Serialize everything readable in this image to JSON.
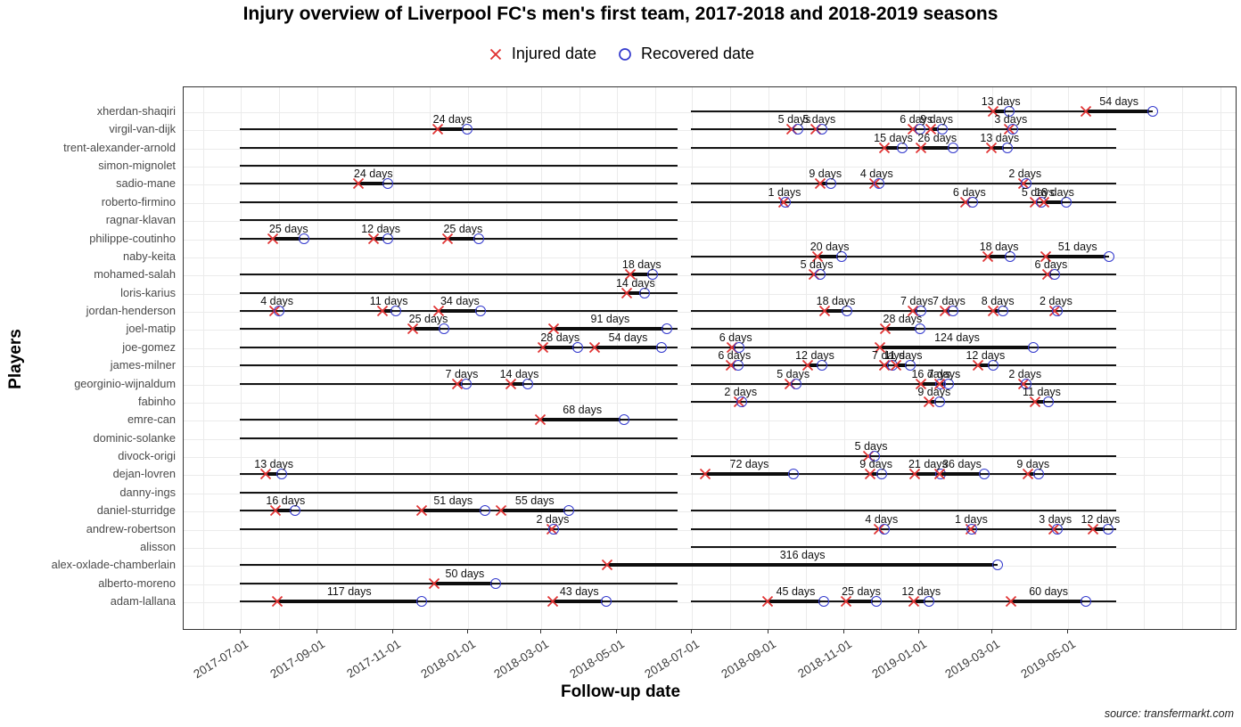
{
  "title": "Injury overview of Liverpool FC's men's first team, 2017-2018 and 2018-2019 seasons",
  "legend": {
    "injured_label": "Injured date",
    "recovered_label": "Recovered date"
  },
  "x_axis": {
    "title": "Follow-up date",
    "ticks": [
      "2017-07-01",
      "2017-09-01",
      "2017-11-01",
      "2018-01-01",
      "2018-03-01",
      "2018-05-01",
      "2018-07-01",
      "2018-09-01",
      "2018-11-01",
      "2019-01-01",
      "2019-03-01",
      "2019-05-01"
    ]
  },
  "y_axis": {
    "title": "Players"
  },
  "caption": "source: transfermarkt.com",
  "colors": {
    "injured": "#e03131",
    "recovered": "#3238cd",
    "line": "#141414",
    "grid": "#ebebeb",
    "axis_text": "#3d3d3d",
    "label_text": "#4a4a4a"
  },
  "chart_data": {
    "type": "timeline",
    "unit": "days",
    "x_range": [
      "2017-05-16",
      "2019-09-13"
    ],
    "grid": "monthly",
    "legend_position": "top-center",
    "players": [
      {
        "name": "xherdan-shaqiri",
        "lines": [
          [
            "2018-07-01",
            "2019-07-09"
          ]
        ],
        "injuries": [
          {
            "start": "2019-03-02",
            "end": "2019-03-15",
            "days": 13
          },
          {
            "start": "2019-05-16",
            "end": "2019-07-09",
            "days": 54
          }
        ]
      },
      {
        "name": "virgil-van-dijk",
        "lines": [
          [
            "2017-07-01",
            "2018-06-20"
          ],
          [
            "2018-07-01",
            "2019-06-10"
          ]
        ],
        "injuries": [
          {
            "start": "2017-12-08",
            "end": "2018-01-01",
            "days": 24
          },
          {
            "start": "2018-09-20",
            "end": "2018-09-25",
            "days": 5
          },
          {
            "start": "2018-10-10",
            "end": "2018-10-15",
            "days": 5
          },
          {
            "start": "2018-12-27",
            "end": "2019-01-02",
            "days": 6
          },
          {
            "start": "2019-01-11",
            "end": "2019-01-20",
            "days": 9
          },
          {
            "start": "2019-03-15",
            "end": "2019-03-18",
            "days": 3
          }
        ]
      },
      {
        "name": "trent-alexander-arnold",
        "lines": [
          [
            "2017-07-01",
            "2018-06-20"
          ],
          [
            "2018-07-01",
            "2019-06-10"
          ]
        ],
        "injuries": [
          {
            "start": "2018-12-04",
            "end": "2018-12-19",
            "days": 15
          },
          {
            "start": "2019-01-03",
            "end": "2019-01-29",
            "days": 26
          },
          {
            "start": "2019-03-01",
            "end": "2019-03-14",
            "days": 13
          }
        ]
      },
      {
        "name": "simon-mignolet",
        "lines": [
          [
            "2017-07-01",
            "2018-06-20"
          ]
        ],
        "injuries": []
      },
      {
        "name": "sadio-mane",
        "lines": [
          [
            "2017-07-01",
            "2018-06-20"
          ],
          [
            "2018-07-01",
            "2019-06-10"
          ]
        ],
        "injuries": [
          {
            "start": "2017-10-05",
            "end": "2017-10-29",
            "days": 24
          },
          {
            "start": "2018-10-13",
            "end": "2018-10-22",
            "days": 9
          },
          {
            "start": "2018-11-26",
            "end": "2018-11-30",
            "days": 4
          },
          {
            "start": "2019-03-27",
            "end": "2019-03-29",
            "days": 2
          }
        ]
      },
      {
        "name": "roberto-firmino",
        "lines": [
          [
            "2017-07-01",
            "2018-06-20"
          ],
          [
            "2018-07-01",
            "2019-06-10"
          ]
        ],
        "injuries": [
          {
            "start": "2018-09-14",
            "end": "2018-09-15",
            "days": 1
          },
          {
            "start": "2019-02-08",
            "end": "2019-02-14",
            "days": 6
          },
          {
            "start": "2019-04-05",
            "end": "2019-04-10",
            "days": 5
          },
          {
            "start": "2019-04-12",
            "end": "2019-04-30",
            "days": 18
          }
        ]
      },
      {
        "name": "ragnar-klavan",
        "lines": [
          [
            "2017-07-01",
            "2018-06-20"
          ]
        ],
        "injuries": []
      },
      {
        "name": "philippe-coutinho",
        "lines": [
          [
            "2017-07-01",
            "2018-06-20"
          ]
        ],
        "injuries": [
          {
            "start": "2017-07-28",
            "end": "2017-08-22",
            "days": 25
          },
          {
            "start": "2017-10-17",
            "end": "2017-10-29",
            "days": 12
          },
          {
            "start": "2017-12-16",
            "end": "2018-01-10",
            "days": 25
          }
        ]
      },
      {
        "name": "naby-keita",
        "lines": [
          [
            "2018-07-01",
            "2019-06-04"
          ]
        ],
        "injuries": [
          {
            "start": "2018-10-11",
            "end": "2018-10-31",
            "days": 20
          },
          {
            "start": "2019-02-26",
            "end": "2019-03-16",
            "days": 18
          },
          {
            "start": "2019-04-14",
            "end": "2019-06-04",
            "days": 51
          }
        ]
      },
      {
        "name": "mohamed-salah",
        "lines": [
          [
            "2017-07-01",
            "2018-06-20"
          ],
          [
            "2018-07-01",
            "2019-06-10"
          ]
        ],
        "injuries": [
          {
            "start": "2018-05-13",
            "end": "2018-05-31",
            "days": 18
          },
          {
            "start": "2018-10-08",
            "end": "2018-10-13",
            "days": 5
          },
          {
            "start": "2019-04-15",
            "end": "2019-04-21",
            "days": 6
          }
        ]
      },
      {
        "name": "loris-karius",
        "lines": [
          [
            "2017-07-01",
            "2018-06-20"
          ]
        ],
        "injuries": [
          {
            "start": "2018-05-10",
            "end": "2018-05-24",
            "days": 14
          }
        ]
      },
      {
        "name": "jordan-henderson",
        "lines": [
          [
            "2017-07-01",
            "2018-06-20"
          ],
          [
            "2018-07-01",
            "2019-06-10"
          ]
        ],
        "injuries": [
          {
            "start": "2017-07-29",
            "end": "2017-08-02",
            "days": 4
          },
          {
            "start": "2017-10-24",
            "end": "2017-11-04",
            "days": 11
          },
          {
            "start": "2017-12-09",
            "end": "2018-01-12",
            "days": 34
          },
          {
            "start": "2018-10-17",
            "end": "2018-11-04",
            "days": 18
          },
          {
            "start": "2018-12-27",
            "end": "2019-01-03",
            "days": 7
          },
          {
            "start": "2019-01-22",
            "end": "2019-01-29",
            "days": 7
          },
          {
            "start": "2019-03-02",
            "end": "2019-03-10",
            "days": 8
          },
          {
            "start": "2019-04-21",
            "end": "2019-04-23",
            "days": 2
          }
        ]
      },
      {
        "name": "joel-matip",
        "lines": [
          [
            "2017-07-01",
            "2018-06-20"
          ],
          [
            "2018-07-01",
            "2019-06-10"
          ]
        ],
        "injuries": [
          {
            "start": "2017-11-18",
            "end": "2017-12-13",
            "days": 25
          },
          {
            "start": "2018-03-12",
            "end": "2018-06-11",
            "days": 91
          },
          {
            "start": "2018-12-05",
            "end": "2019-01-02",
            "days": 28
          }
        ]
      },
      {
        "name": "joe-gomez",
        "lines": [
          [
            "2017-07-01",
            "2018-06-20"
          ],
          [
            "2018-07-01",
            "2019-06-10"
          ]
        ],
        "injuries": [
          {
            "start": "2018-03-03",
            "end": "2018-03-31",
            "days": 28
          },
          {
            "start": "2018-04-14",
            "end": "2018-06-07",
            "days": 54
          },
          {
            "start": "2018-08-03",
            "end": "2018-08-09",
            "days": 6
          },
          {
            "start": "2018-12-01",
            "end": "2019-04-04",
            "days": 124
          }
        ]
      },
      {
        "name": "james-milner",
        "lines": [
          [
            "2017-07-01",
            "2018-06-20"
          ],
          [
            "2018-07-01",
            "2019-06-10"
          ]
        ],
        "injuries": [
          {
            "start": "2018-08-02",
            "end": "2018-08-08",
            "days": 6
          },
          {
            "start": "2018-10-03",
            "end": "2018-10-15",
            "days": 12
          },
          {
            "start": "2018-12-04",
            "end": "2018-12-11",
            "days": 7
          },
          {
            "start": "2018-12-14",
            "end": "2018-12-25",
            "days": 11
          },
          {
            "start": "2019-02-18",
            "end": "2019-03-02",
            "days": 12
          }
        ]
      },
      {
        "name": "georginio-wijnaldum",
        "lines": [
          [
            "2017-07-01",
            "2018-06-20"
          ],
          [
            "2018-07-01",
            "2019-06-10"
          ]
        ],
        "injuries": [
          {
            "start": "2017-12-24",
            "end": "2017-12-31",
            "days": 7
          },
          {
            "start": "2018-02-05",
            "end": "2018-02-19",
            "days": 14
          },
          {
            "start": "2018-09-19",
            "end": "2018-09-24",
            "days": 5
          },
          {
            "start": "2019-01-03",
            "end": "2019-01-19",
            "days": 16
          },
          {
            "start": "2019-01-18",
            "end": "2019-01-25",
            "days": 7
          },
          {
            "start": "2019-03-27",
            "end": "2019-03-29",
            "days": 2
          }
        ]
      },
      {
        "name": "fabinho",
        "lines": [
          [
            "2018-07-01",
            "2019-06-10"
          ]
        ],
        "injuries": [
          {
            "start": "2018-08-09",
            "end": "2018-08-11",
            "days": 2
          },
          {
            "start": "2019-01-09",
            "end": "2019-01-18",
            "days": 9
          },
          {
            "start": "2019-04-05",
            "end": "2019-04-16",
            "days": 11
          }
        ]
      },
      {
        "name": "emre-can",
        "lines": [
          [
            "2017-07-01",
            "2018-06-20"
          ]
        ],
        "injuries": [
          {
            "start": "2018-03-01",
            "end": "2018-05-08",
            "days": 68
          }
        ]
      },
      {
        "name": "dominic-solanke",
        "lines": [
          [
            "2017-07-01",
            "2018-06-20"
          ]
        ],
        "injuries": []
      },
      {
        "name": "divock-origi",
        "lines": [
          [
            "2018-07-01",
            "2019-06-10"
          ]
        ],
        "injuries": [
          {
            "start": "2018-11-21",
            "end": "2018-11-26",
            "days": 5
          }
        ]
      },
      {
        "name": "dejan-lovren",
        "lines": [
          [
            "2017-07-01",
            "2018-06-20"
          ],
          [
            "2018-07-01",
            "2019-06-10"
          ]
        ],
        "injuries": [
          {
            "start": "2017-07-22",
            "end": "2017-08-04",
            "days": 13
          },
          {
            "start": "2018-07-12",
            "end": "2018-09-22",
            "days": 72
          },
          {
            "start": "2018-11-23",
            "end": "2018-12-02",
            "days": 9
          },
          {
            "start": "2018-12-29",
            "end": "2019-01-19",
            "days": 21
          },
          {
            "start": "2019-01-18",
            "end": "2019-02-23",
            "days": 36
          },
          {
            "start": "2019-03-30",
            "end": "2019-04-08",
            "days": 9
          }
        ]
      },
      {
        "name": "danny-ings",
        "lines": [
          [
            "2017-07-01",
            "2018-06-20"
          ]
        ],
        "injuries": []
      },
      {
        "name": "daniel-sturridge",
        "lines": [
          [
            "2017-07-01",
            "2018-06-20"
          ],
          [
            "2018-07-01",
            "2019-06-10"
          ]
        ],
        "injuries": [
          {
            "start": "2017-07-30",
            "end": "2017-08-15",
            "days": 16
          },
          {
            "start": "2017-11-25",
            "end": "2018-01-15",
            "days": 51
          },
          {
            "start": "2018-01-28",
            "end": "2018-03-24",
            "days": 55
          }
        ]
      },
      {
        "name": "andrew-robertson",
        "lines": [
          [
            "2017-07-01",
            "2018-06-20"
          ],
          [
            "2018-07-01",
            "2019-06-10"
          ]
        ],
        "injuries": [
          {
            "start": "2018-03-10",
            "end": "2018-03-12",
            "days": 2
          },
          {
            "start": "2018-11-30",
            "end": "2018-12-04",
            "days": 4
          },
          {
            "start": "2019-02-12",
            "end": "2019-02-13",
            "days": 1
          },
          {
            "start": "2019-04-20",
            "end": "2019-04-23",
            "days": 3
          },
          {
            "start": "2019-05-22",
            "end": "2019-06-03",
            "days": 12
          }
        ]
      },
      {
        "name": "alisson",
        "lines": [
          [
            "2018-07-01",
            "2019-06-10"
          ]
        ],
        "injuries": []
      },
      {
        "name": "alex-oxlade-chamberlain",
        "lines": [
          [
            "2017-07-01",
            "2019-03-06"
          ]
        ],
        "injuries": [
          {
            "start": "2018-04-24",
            "end": "2019-03-06",
            "days": 316
          }
        ]
      },
      {
        "name": "alberto-moreno",
        "lines": [
          [
            "2017-07-01",
            "2018-06-20"
          ]
        ],
        "injuries": [
          {
            "start": "2017-12-05",
            "end": "2018-01-24",
            "days": 50
          }
        ]
      },
      {
        "name": "adam-lallana",
        "lines": [
          [
            "2017-07-01",
            "2018-06-20"
          ],
          [
            "2018-07-01",
            "2019-06-10"
          ]
        ],
        "injuries": [
          {
            "start": "2017-07-31",
            "end": "2017-11-25",
            "days": 117
          },
          {
            "start": "2018-03-11",
            "end": "2018-04-23",
            "days": 43
          },
          {
            "start": "2018-09-01",
            "end": "2018-10-16",
            "days": 45
          },
          {
            "start": "2018-11-03",
            "end": "2018-11-28",
            "days": 25
          },
          {
            "start": "2018-12-28",
            "end": "2019-01-09",
            "days": 12
          },
          {
            "start": "2019-03-17",
            "end": "2019-05-16",
            "days": 60
          }
        ]
      }
    ]
  }
}
